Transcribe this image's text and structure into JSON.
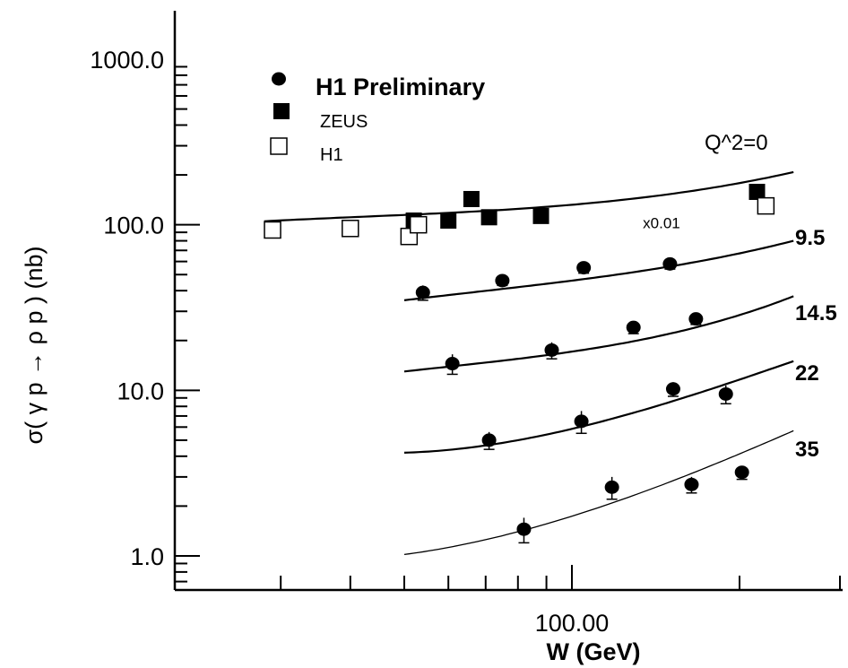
{
  "chart_data": {
    "type": "scatter",
    "title": "",
    "xlabel": "W (GeV)",
    "ylabel": "σ( γ   p → ρ  p )  (nb)",
    "xscale": "log",
    "yscale": "log",
    "xlim": [
      27,
      262
    ],
    "ylim": [
      0.7,
      3000
    ],
    "x_tick_labels": [
      {
        "value": 100,
        "label": "100.00"
      }
    ],
    "y_tick_labels": [
      {
        "value": 1,
        "label": "1.0"
      },
      {
        "value": 10,
        "label": "10.0"
      },
      {
        "value": 100,
        "label": "100.0"
      },
      {
        "value": 1000,
        "label": "1000.0"
      }
    ],
    "legend": {
      "placement": "top-left",
      "entries": [
        {
          "key": "h1prelim",
          "label": "H1 Preliminary",
          "marker": "filled-circle"
        },
        {
          "key": "zeus",
          "label": "ZEUS",
          "marker": "filled-square"
        },
        {
          "key": "h1",
          "label": "H1",
          "marker": "open-square"
        }
      ]
    },
    "annotations": [
      {
        "text": "x0.01",
        "x": 120,
        "y": 103
      }
    ],
    "curves": [
      {
        "label": "Q^2=0",
        "x": [
          28,
          60,
          120,
          250
        ],
        "y": [
          105,
          118,
          140,
          208
        ]
      },
      {
        "label": "9.5",
        "x": [
          50,
          80,
          150,
          250
        ],
        "y": [
          35,
          42,
          56,
          80
        ]
      },
      {
        "label": "14.5",
        "x": [
          50,
          80,
          150,
          250
        ],
        "y": [
          13,
          15.5,
          22,
          37
        ]
      },
      {
        "label": "22",
        "x": [
          50,
          80,
          150,
          250
        ],
        "y": [
          4.2,
          5,
          8.5,
          15
        ]
      },
      {
        "label": "35",
        "x": [
          50,
          80,
          150,
          250
        ],
        "y": [
          1.02,
          1.4,
          2.8,
          5.7
        ]
      }
    ],
    "series": [
      {
        "key": "zeus",
        "name": "ZEUS",
        "marker": "filled-square",
        "points": [
          {
            "x": 52,
            "y": 106
          },
          {
            "x": 60,
            "y": 106
          },
          {
            "x": 66,
            "y": 143
          },
          {
            "x": 71,
            "y": 111
          },
          {
            "x": 88,
            "y": 113
          },
          {
            "x": 215,
            "y": 158
          }
        ]
      },
      {
        "key": "h1",
        "name": "H1",
        "marker": "open-square",
        "points": [
          {
            "x": 29,
            "y": 93
          },
          {
            "x": 40,
            "y": 95
          },
          {
            "x": 51,
            "y": 85
          },
          {
            "x": 53,
            "y": 100
          },
          {
            "x": 223,
            "y": 130
          }
        ]
      },
      {
        "key": "h1prelim",
        "name": "H1 Preliminary",
        "marker": "filled-circle",
        "points": [
          {
            "x": 54,
            "y": 39,
            "err": 4
          },
          {
            "x": 75,
            "y": 46,
            "err": 3
          },
          {
            "x": 105,
            "y": 55,
            "err": 4
          },
          {
            "x": 150,
            "y": 58,
            "err": 4
          },
          {
            "x": 61,
            "y": 14.5,
            "err": 2
          },
          {
            "x": 92,
            "y": 17.5,
            "err": 2
          },
          {
            "x": 129,
            "y": 24,
            "err": 2
          },
          {
            "x": 167,
            "y": 27,
            "err": 2
          },
          {
            "x": 71,
            "y": 5,
            "err": 0.6
          },
          {
            "x": 104,
            "y": 6.5,
            "err": 1
          },
          {
            "x": 152,
            "y": 10.2,
            "err": 1
          },
          {
            "x": 189,
            "y": 9.5,
            "err": 1.2
          },
          {
            "x": 82,
            "y": 1.45,
            "err": 0.25
          },
          {
            "x": 118,
            "y": 2.6,
            "err": 0.4
          },
          {
            "x": 164,
            "y": 2.7,
            "err": 0.3
          },
          {
            "x": 202,
            "y": 3.2,
            "err": 0.3
          }
        ]
      }
    ]
  }
}
